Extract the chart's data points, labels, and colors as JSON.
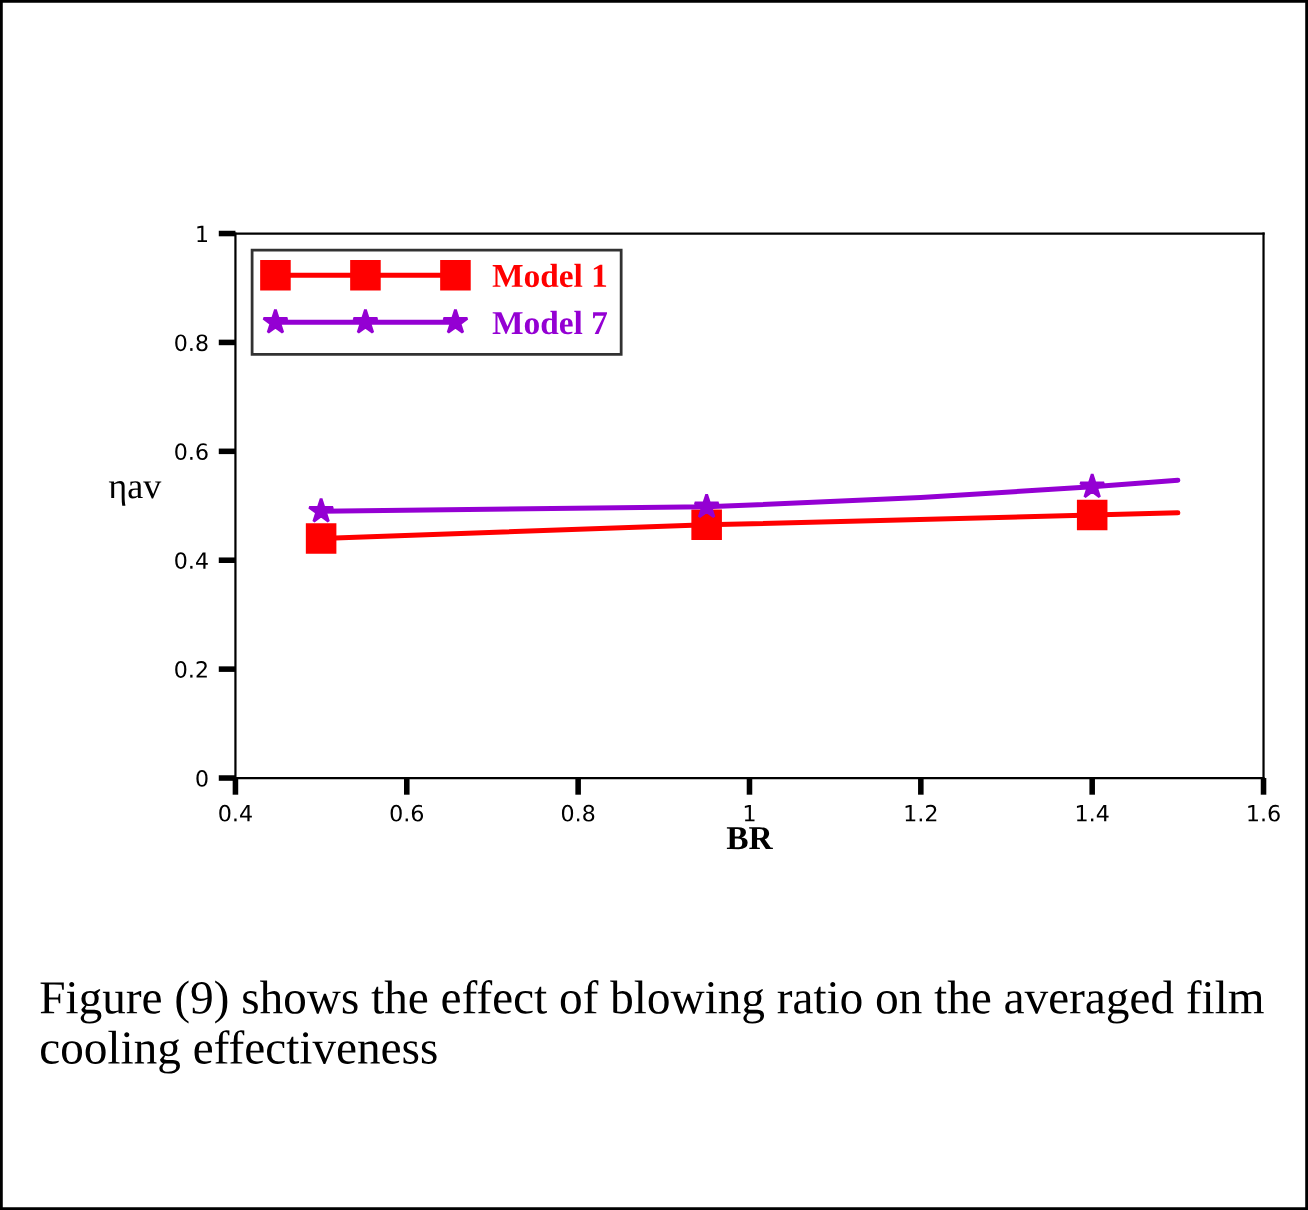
{
  "chart_data": {
    "type": "line",
    "xlabel": "BR",
    "ylabel": "ηav",
    "xlim": [
      0.4,
      1.6
    ],
    "xticks": [
      0.4,
      0.6,
      0.8,
      1,
      1.2,
      1.4,
      1.6
    ],
    "ylim": [
      0,
      1
    ],
    "yticks": [
      0,
      0.2,
      0.4,
      0.6,
      0.8,
      1
    ],
    "series": [
      {
        "name": "Model 1",
        "color": "#ff0000",
        "marker": "square",
        "x": [
          0.5,
          0.95,
          1.4,
          1.5
        ],
        "values": [
          0.44,
          0.465,
          0.483,
          0.487
        ]
      },
      {
        "name": "Model 7",
        "color": "#9400d3",
        "marker": "star",
        "x": [
          0.5,
          0.95,
          1.2,
          1.4,
          1.5
        ],
        "values": [
          0.49,
          0.498,
          0.515,
          0.535,
          0.547
        ]
      }
    ],
    "legend": "top left",
    "grid": false,
    "annotations": [
      "Figure (9) shows the effect of blowing ratio on the averaged film cooling effectiveness"
    ]
  }
}
